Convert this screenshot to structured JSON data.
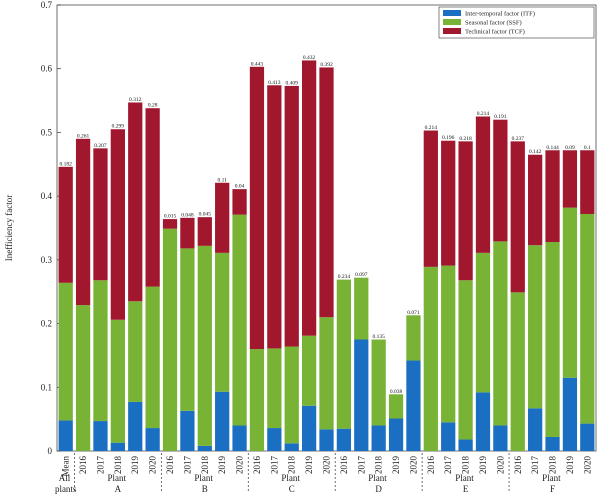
{
  "chart_data": {
    "type": "stacked_bar",
    "y_label": "Inefficiency factor",
    "categories": [
      "Mean",
      "2016",
      "2017",
      "2018",
      "2019",
      "2020",
      "2016",
      "2017",
      "2018",
      "2019",
      "2020",
      "2016",
      "2017",
      "2018",
      "2019",
      "2020",
      "2016",
      "2017",
      "2018",
      "2019",
      "2020",
      "2016",
      "2017",
      "2018",
      "2019",
      "2020",
      "2016",
      "2017",
      "2018",
      "2019",
      "2020"
    ],
    "groups": [
      "All plants",
      "Plant A",
      "Plant B",
      "Plant C",
      "Plant D",
      "Plant E",
      "Plant F"
    ],
    "series": [
      {
        "name": "Inter-temporal factor (ITF)",
        "color": "#1a6fc2",
        "values": [
          0.048,
          0,
          0.047,
          0.013,
          0.077,
          0.036,
          0,
          0.063,
          0.008,
          0.093,
          0.04,
          0,
          0.036,
          0.012,
          0.071,
          0.034,
          0.035,
          0.175,
          0.04,
          0.051,
          0.142,
          0,
          0.045,
          0.018,
          0.092,
          0.04,
          0,
          0.067,
          0.022,
          0.115,
          0.043
        ]
      },
      {
        "name": "Seasonal factor (SSF)",
        "color": "#78b336",
        "values": [
          0.216,
          0.229,
          0.221,
          0.193,
          0.158,
          0.222,
          0.349,
          0.255,
          0.314,
          0.218,
          0.331,
          0.16,
          0.125,
          0.152,
          0.11,
          0.176,
          0.234,
          0.097,
          0.135,
          0.038,
          0.071,
          0.289,
          0.246,
          0.25,
          0.219,
          0.289,
          0.249,
          0.256,
          0.306,
          0.267,
          0.329
        ]
      },
      {
        "name": "Technical factor (TCF)",
        "color": "#a1172e",
        "values": [
          0.182,
          0.261,
          0.207,
          0.299,
          0.312,
          0.28,
          0.015,
          0.048,
          0.045,
          0.11,
          0.04,
          0.443,
          0.413,
          0.409,
          0.432,
          0.392,
          0,
          0,
          0,
          0,
          0,
          0.214,
          0.196,
          0.218,
          0.214,
          0.191,
          0.237,
          0.142,
          0.144,
          0.09,
          0.1
        ]
      }
    ],
    "ylim": [
      0,
      0.7
    ],
    "yticks": [
      0,
      0.1,
      0.2,
      0.3,
      0.4,
      0.5,
      0.6,
      0.7
    ],
    "legend": "upper right"
  }
}
